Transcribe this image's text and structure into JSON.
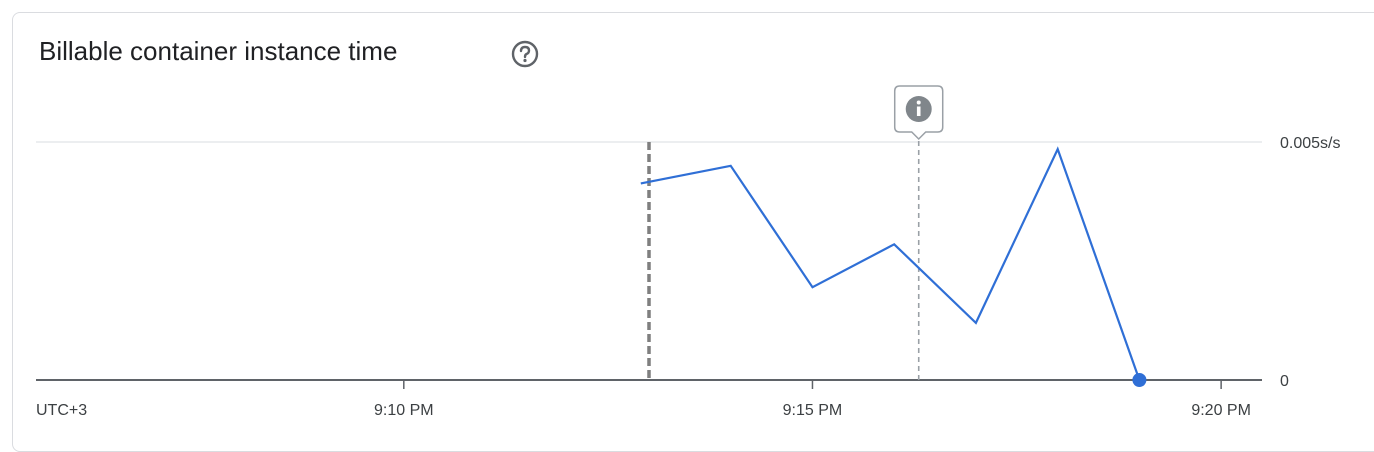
{
  "card": {
    "title": "Billable container instance time",
    "help_icon": "help-circle-icon",
    "annotation_icon": "info-icon"
  },
  "colors": {
    "series": "#2f6fd6",
    "gridline": "#dadce0",
    "axis": "#5f6368",
    "marker_dashed": "#7f7f7f",
    "annotation_line": "#9aa0a6"
  },
  "chart_data": {
    "type": "line",
    "title": "Billable container instance time",
    "xlabel": "",
    "ylabel": "",
    "timezone_label": "UTC+3",
    "x_tick_labels": [
      "9:10 PM",
      "9:15 PM",
      "9:20 PM"
    ],
    "x_ticks_minutes": [
      10,
      15,
      20
    ],
    "y_tick_labels": [
      "0",
      "0.005s/s"
    ],
    "y_ticks": [
      0,
      0.005
    ],
    "xlim_minutes": [
      5.5,
      20.5
    ],
    "ylim": [
      0,
      0.005
    ],
    "grid": true,
    "series": [
      {
        "x_minutes": [
          12.9,
          14.0,
          15.0,
          16.0,
          17.0,
          18.0,
          19.0
        ],
        "values": [
          0.00413,
          0.0045,
          0.00195,
          0.00285,
          0.0012,
          0.00485,
          0
        ]
      }
    ],
    "vertical_markers": [
      {
        "x_minutes": 13.0,
        "style": "dashed-thick"
      },
      {
        "x_minutes": 16.3,
        "style": "dashed-annotation"
      }
    ]
  }
}
